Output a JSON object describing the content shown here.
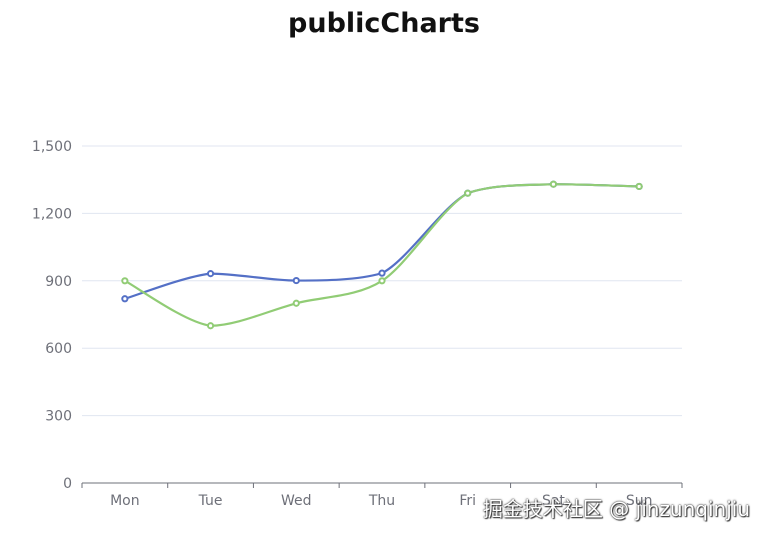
{
  "chart_data": {
    "type": "line",
    "title": "publicCharts",
    "xlabel": "",
    "ylabel": "",
    "categories": [
      "Mon",
      "Tue",
      "Wed",
      "Thu",
      "Fri",
      "Sat",
      "Sun"
    ],
    "ylim": [
      0,
      1500
    ],
    "yticks": [
      "0",
      "300",
      "600",
      "900",
      "1,200",
      "1,500"
    ],
    "ytick_values": [
      0,
      300,
      600,
      900,
      1200,
      1500
    ],
    "smooth": true,
    "grid": true,
    "series": [
      {
        "color": "#5470c6",
        "values": [
          820,
          932,
          901,
          934,
          1290,
          1330,
          1320
        ]
      },
      {
        "color": "#91cc75",
        "values": [
          900,
          700,
          800,
          900,
          1290,
          1330,
          1320
        ]
      }
    ]
  },
  "watermark": "掘金技术社区 @ jinzunqinjiu"
}
